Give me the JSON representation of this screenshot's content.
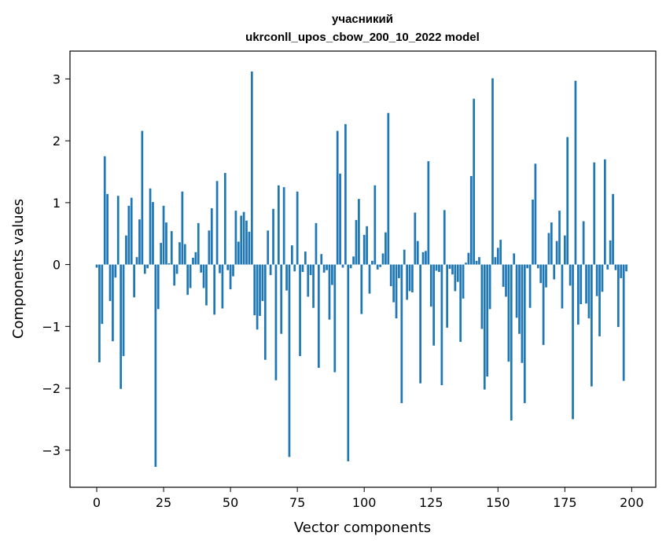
{
  "chart_data": {
    "type": "bar",
    "title_line1": "учасникий",
    "title_line2": "ukrconll_upos_cbow_200_10_2022 model",
    "xlabel": "Vector components",
    "ylabel": "Components values",
    "xlim": [
      -10,
      209
    ],
    "ylim": [
      -3.6,
      3.45
    ],
    "xticks": [
      0,
      25,
      50,
      75,
      100,
      125,
      150,
      175,
      200
    ],
    "xtick_labels": [
      "0",
      "25",
      "50",
      "75",
      "100",
      "125",
      "150",
      "175",
      "200"
    ],
    "yticks": [
      -3,
      -2,
      -1,
      0,
      1,
      2,
      3
    ],
    "ytick_labels": [
      "−3",
      "−2",
      "−1",
      "0",
      "1",
      "2",
      "3"
    ],
    "bar_color": "#1f77b4",
    "grid": false,
    "values": [
      -0.05,
      -1.58,
      -0.96,
      1.75,
      1.14,
      -0.59,
      -1.24,
      -0.21,
      1.11,
      -2.01,
      -1.48,
      0.47,
      0.95,
      1.08,
      -0.53,
      0.12,
      0.73,
      2.16,
      -0.15,
      -0.06,
      1.23,
      1.01,
      -3.27,
      -0.72,
      0.35,
      0.95,
      0.68,
      0.02,
      0.54,
      -0.34,
      -0.15,
      0.36,
      1.18,
      0.33,
      -0.49,
      -0.38,
      0.11,
      0.2,
      0.67,
      -0.13,
      -0.38,
      -0.66,
      0.55,
      0.91,
      -0.81,
      1.35,
      -0.14,
      -0.71,
      1.48,
      -0.09,
      -0.4,
      -0.19,
      0.87,
      0.37,
      0.79,
      0.85,
      0.71,
      0.53,
      3.12,
      -0.82,
      -1.05,
      -0.83,
      -0.59,
      -1.54,
      0.55,
      -0.17,
      0.9,
      -1.87,
      1.28,
      -1.12,
      1.25,
      -0.42,
      -3.11,
      0.31,
      -0.11,
      1.18,
      -1.48,
      -0.12,
      0.21,
      -0.52,
      -0.17,
      -0.7,
      0.67,
      -1.67,
      0.17,
      -0.13,
      -0.09,
      -0.89,
      -0.33,
      -1.74,
      2.16,
      1.47,
      -0.05,
      2.27,
      -3.18,
      -0.06,
      0.13,
      0.72,
      1.06,
      -0.8,
      0.48,
      0.62,
      -0.47,
      0.06,
      1.28,
      -0.08,
      -0.04,
      0.18,
      0.52,
      2.45,
      -0.35,
      -0.61,
      -0.87,
      -0.22,
      -2.24,
      0.24,
      -0.57,
      -0.43,
      -0.45,
      0.84,
      0.38,
      -1.92,
      0.2,
      0.22,
      1.67,
      -0.68,
      -1.31,
      -0.1,
      -0.12,
      -1.95,
      0.88,
      -1.02,
      -0.07,
      -0.16,
      -0.43,
      -0.28,
      -1.25,
      -0.55,
      0.03,
      0.19,
      1.43,
      2.68,
      0.06,
      0.12,
      -1.04,
      -2.02,
      -1.81,
      -0.72,
      3.01,
      0.12,
      0.27,
      0.4,
      -0.36,
      -0.52,
      -1.57,
      -2.52,
      0.18,
      -0.86,
      -1.12,
      -1.59,
      -2.24,
      -0.06,
      -0.7,
      1.05,
      1.63,
      -0.06,
      -0.3,
      -1.3,
      -0.37,
      0.51,
      0.68,
      -0.24,
      0.38,
      0.87,
      -0.71,
      0.47,
      2.06,
      -0.34,
      -2.5,
      2.97,
      -0.97,
      -0.64,
      0.7,
      -0.63,
      -0.87,
      -1.97,
      1.65,
      -0.51,
      -1.16,
      -0.44,
      1.7,
      -0.08,
      0.39,
      1.14,
      -0.09,
      -1.01,
      -0.22,
      -1.88,
      -0.11,
      0.0
    ]
  }
}
